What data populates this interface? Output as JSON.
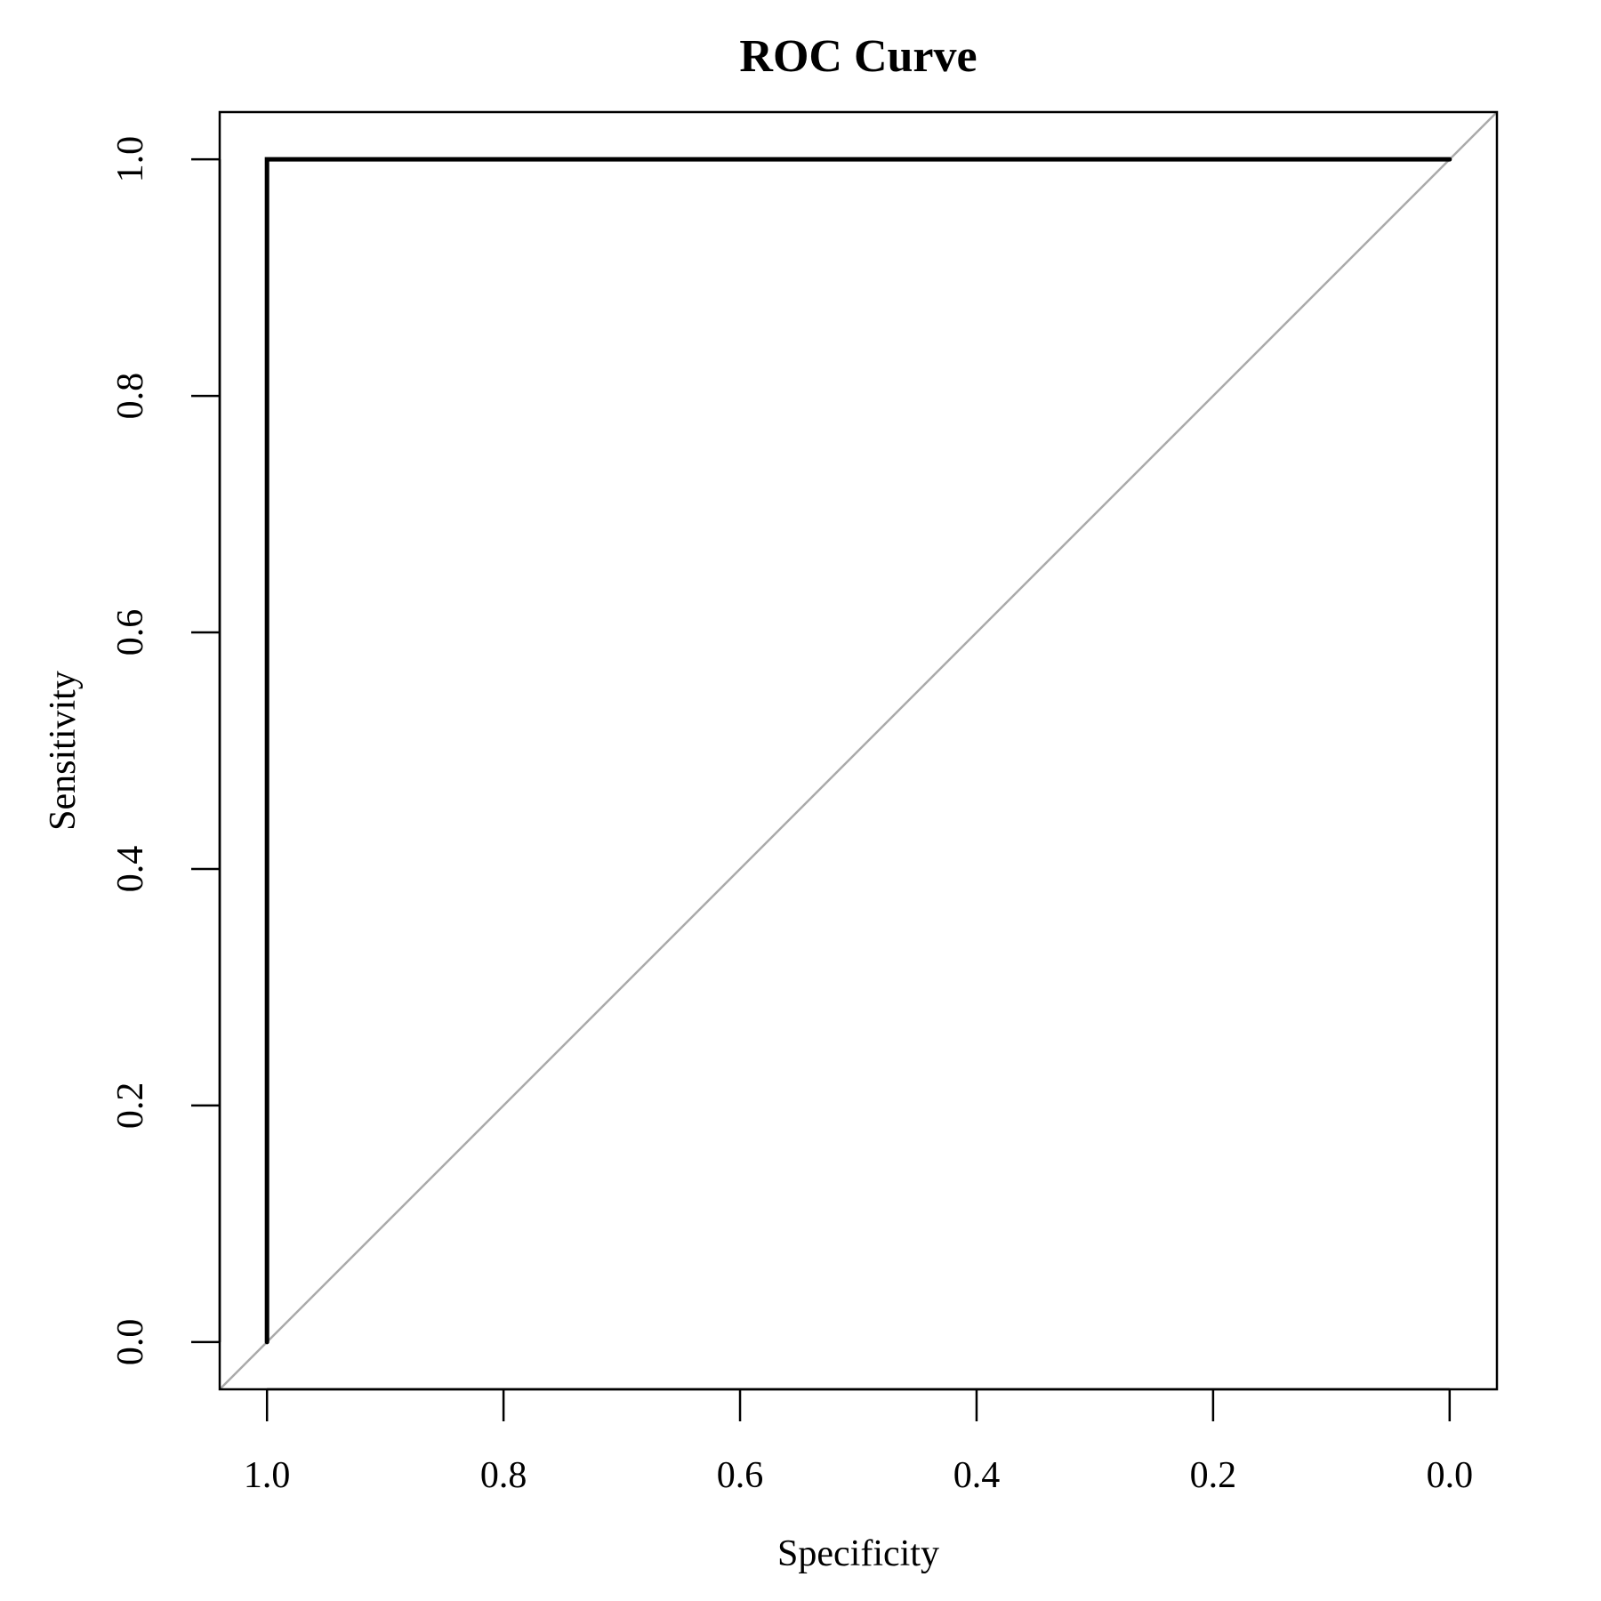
{
  "chart_data": {
    "type": "line",
    "title": "ROC Curve",
    "xlabel": "Specificity",
    "ylabel": "Sensitivity",
    "x_reversed": true,
    "xlim": [
      1.04,
      -0.04
    ],
    "ylim": [
      -0.04,
      1.04
    ],
    "xticks": [
      "1.0",
      "0.8",
      "0.6",
      "0.4",
      "0.2",
      "0.0"
    ],
    "yticks": [
      "0.0",
      "0.2",
      "0.4",
      "0.6",
      "0.8",
      "1.0"
    ],
    "grid": false,
    "series": [
      {
        "x": [
          1.0,
          1.0,
          0.0
        ],
        "y": [
          0.0,
          1.0,
          1.0
        ],
        "color": "#000000"
      }
    ],
    "reference_line": {
      "x": [
        1.04,
        -0.04
      ],
      "y": [
        -0.04,
        1.04
      ],
      "color": "#aaaaaa"
    }
  }
}
